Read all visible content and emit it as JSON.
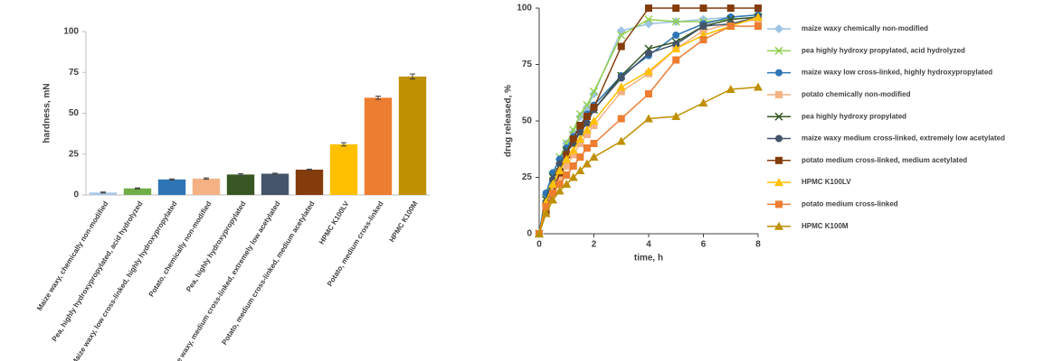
{
  "chart_data": [
    {
      "type": "bar",
      "y_label": "hardness, mN",
      "categories": [
        "Maize waxy, chemically non-modified",
        "Pea, highly hydroxypropylated, acid hydrolyzed",
        "Maize waxy, low cross-linked, highly hydroxypropylated",
        "Potato, chemically non-modified",
        "Pea, highly hydroxypropylated",
        "Maize waxy, medium cross-linked, extremely low acetylated",
        "Potato, medium cross-linked, medium acetylated",
        "HPMC K100LV",
        "Potato, medium cross-linked",
        "HPMC K100M"
      ],
      "values": [
        1.5,
        4,
        9.5,
        10,
        12.5,
        13,
        15.5,
        31,
        59.5,
        72.5
      ],
      "errors": [
        0.3,
        0.3,
        0.3,
        0.4,
        0.5,
        0.3,
        0.3,
        1,
        1,
        1.5
      ],
      "colors": [
        "#a9c9e8",
        "#70ad47",
        "#2e75b6",
        "#f4b183",
        "#375623",
        "#44546a",
        "#843c0c",
        "#ffc000",
        "#ed7d31",
        "#bf9000"
      ],
      "ylim": [
        0,
        100
      ],
      "yticks": [
        0,
        25,
        50,
        75,
        100
      ]
    },
    {
      "type": "line",
      "x_label": "time, h",
      "y_label": "drug released, %",
      "x": [
        0,
        0.25,
        0.5,
        0.75,
        1,
        1.25,
        1.5,
        1.75,
        2,
        3,
        4,
        5,
        6,
        7,
        8
      ],
      "xlim": [
        0,
        8
      ],
      "xticks": [
        0,
        2,
        4,
        6,
        8
      ],
      "ylim": [
        0,
        100
      ],
      "yticks": [
        0,
        25,
        50,
        75,
        100
      ],
      "series": [
        {
          "name": "maize waxy chemically non-modified",
          "color": "#9dc3e6",
          "marker": "diamond",
          "values": [
            0,
            17,
            27,
            33,
            40,
            45,
            52,
            56,
            62,
            90,
            93,
            94,
            95,
            96,
            97
          ]
        },
        {
          "name": "pea highly hydroxy propylated, acid hydrolyzed",
          "color": "#92d050",
          "marker": "x",
          "values": [
            0,
            16,
            26,
            34,
            40,
            46,
            53,
            57,
            63,
            88,
            95,
            94,
            94,
            95,
            96
          ]
        },
        {
          "name": "maize waxy low cross-linked, highly hydroxypropylated",
          "color": "#2e75b6",
          "marker": "circle",
          "values": [
            0,
            18,
            27,
            33,
            38,
            43,
            48,
            53,
            57,
            70,
            79,
            88,
            93,
            96,
            97
          ]
        },
        {
          "name": "potato chemically non-modified",
          "color": "#f4b183",
          "marker": "square",
          "values": [
            0,
            12,
            20,
            25,
            30,
            35,
            40,
            44,
            48,
            63,
            71,
            82,
            90,
            93,
            95
          ]
        },
        {
          "name": "pea highly hydroxy propylated",
          "color": "#375623",
          "marker": "x",
          "values": [
            0,
            15,
            25,
            30,
            37,
            41,
            45,
            50,
            55,
            70,
            82,
            85,
            92,
            95,
            96
          ]
        },
        {
          "name": "maize waxy medium cross-linked, extremely low acetylated",
          "color": "#44546a",
          "marker": "circle",
          "values": [
            0,
            14,
            24,
            31,
            36,
            40,
            45,
            49,
            55,
            69,
            80,
            84,
            92,
            93,
            96
          ]
        },
        {
          "name": "potato medium cross-linked, medium acetylated",
          "color": "#843c0c",
          "marker": "square",
          "values": [
            0,
            10,
            18,
            27,
            35,
            42,
            48,
            52,
            56,
            83,
            100,
            100,
            100,
            100,
            100
          ]
        },
        {
          "name": "HPMC K100LV",
          "color": "#ffc000",
          "marker": "triangle",
          "values": [
            0,
            14,
            22,
            28,
            33,
            37,
            42,
            46,
            50,
            65,
            72,
            82,
            88,
            92,
            96
          ]
        },
        {
          "name": "potato medium cross-linked",
          "color": "#ed7d31",
          "marker": "square",
          "values": [
            0,
            12,
            18,
            22,
            26,
            30,
            34,
            38,
            40,
            51,
            62,
            77,
            86,
            92,
            92
          ]
        },
        {
          "name": "HPMC K100M",
          "color": "#bf9000",
          "marker": "triangle",
          "values": [
            0,
            9,
            15,
            19,
            22,
            25,
            28,
            31,
            34,
            41,
            51,
            52,
            58,
            64,
            65
          ]
        }
      ]
    }
  ]
}
